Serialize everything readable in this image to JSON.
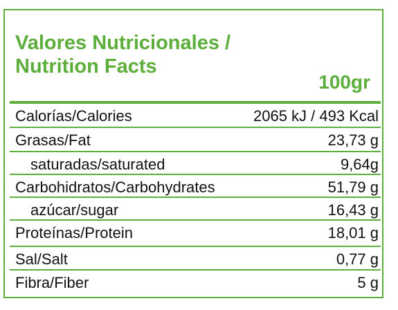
{
  "header": {
    "title_lines": [
      "Valores Nutricionales /",
      "Nutrition Facts"
    ],
    "serving": "100gr"
  },
  "table": {
    "rows": [
      [
        "Calorías/Calories",
        "2065 kJ / 493 Kcal"
      ],
      [
        "Grasas/Fat",
        "23,73 g"
      ],
      [
        "saturadas/saturated",
        "9,64g"
      ],
      [
        "Carbohidratos/Carbohydrates",
        "51,79 g"
      ],
      [
        "azúcar/sugar",
        "16,43 g"
      ],
      [
        "Proteínas/Protein",
        "18,01 g"
      ],
      [
        "Sal/Salt",
        "0,77 g"
      ],
      [
        "Fibra/Fiber",
        "5 g"
      ]
    ]
  }
}
